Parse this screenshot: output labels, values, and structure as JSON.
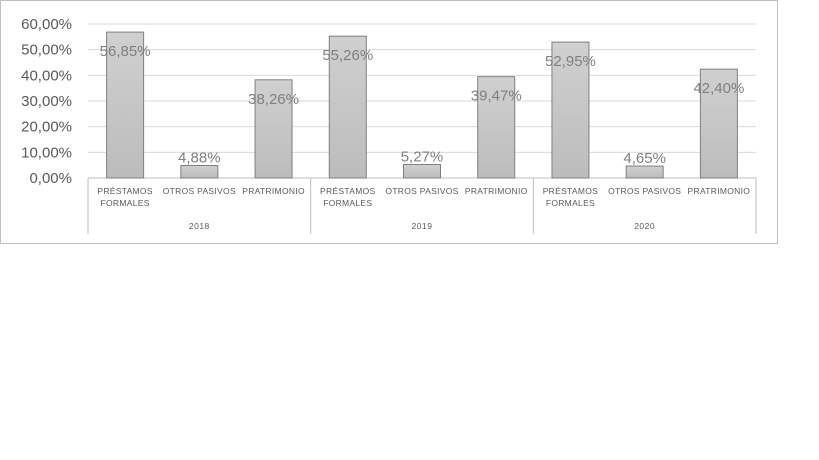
{
  "chart_data": {
    "type": "bar",
    "title": "",
    "xlabel": "",
    "ylabel": "",
    "ylim": [
      0,
      0.6
    ],
    "yticks": [
      0,
      0.1,
      0.2,
      0.3,
      0.4,
      0.5,
      0.6
    ],
    "ytick_labels": [
      "0,00%",
      "10,00%",
      "20,00%",
      "30,00%",
      "40,00%",
      "50,00%",
      "60,00%"
    ],
    "grid": true,
    "legend": "none",
    "bar_color": "#c8c8c8",
    "groups": [
      {
        "year": "2018",
        "categories": [
          {
            "label": [
              "PRÉSTAMOS",
              "FORMALES"
            ],
            "value": 0.5685,
            "value_label": "56,85%"
          },
          {
            "label": [
              "OTROS PASIVOS"
            ],
            "value": 0.0488,
            "value_label": "4,88%"
          },
          {
            "label": [
              "PRATRIMONIO"
            ],
            "value": 0.3826,
            "value_label": "38,26%"
          }
        ]
      },
      {
        "year": "2019",
        "categories": [
          {
            "label": [
              "PRÉSTAMOS",
              "FORMALES"
            ],
            "value": 0.5526,
            "value_label": "55,26%"
          },
          {
            "label": [
              "OTROS PASIVOS"
            ],
            "value": 0.0527,
            "value_label": "5,27%"
          },
          {
            "label": [
              "PRATRIMONIO"
            ],
            "value": 0.3947,
            "value_label": "39,47%"
          }
        ]
      },
      {
        "year": "2020",
        "categories": [
          {
            "label": [
              "PRÉSTAMOS",
              "FORMALES"
            ],
            "value": 0.5295,
            "value_label": "52,95%"
          },
          {
            "label": [
              "OTROS PASIVOS"
            ],
            "value": 0.0465,
            "value_label": "4,65%"
          },
          {
            "label": [
              "PRATRIMONIO"
            ],
            "value": 0.424,
            "value_label": "42,40%"
          }
        ]
      }
    ]
  }
}
